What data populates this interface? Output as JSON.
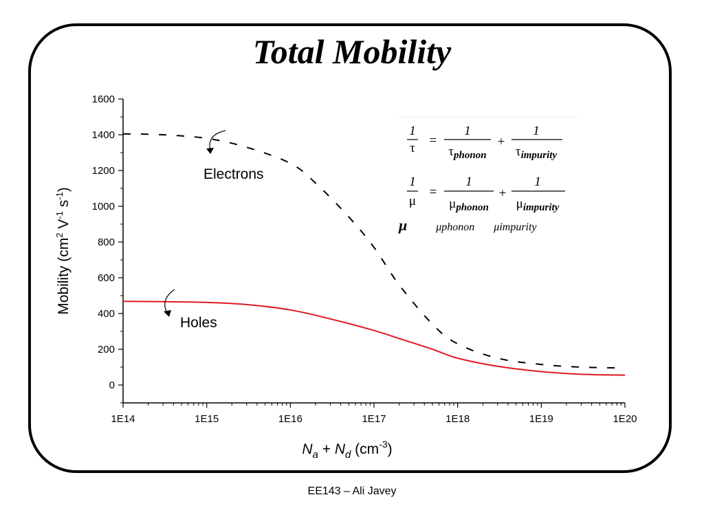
{
  "slide": {
    "title": "Total Mobility",
    "footer": "EE143 – Ali Javey"
  },
  "chart_data": {
    "type": "line",
    "title": "",
    "xlabel": {
      "base": "N",
      "sub_a": "a",
      "plus": " + ",
      "sub_d": "d",
      "unit_open": " (cm",
      "unit_exp": "-3",
      "unit_close": ")"
    },
    "ylabel": {
      "text1": "Mobility (cm",
      "exp1": "2",
      "text2": " V",
      "exp2": "-1",
      "text3": " s",
      "exp3": "-1",
      "text4": ")"
    },
    "x_scale": "log",
    "xlim": [
      100000000000000.0,
      1e+20
    ],
    "ylim": [
      -100,
      1600
    ],
    "x_ticks": [
      100000000000000.0,
      1000000000000000.0,
      1e+16,
      1e+17,
      1e+18,
      1e+19,
      1e+20
    ],
    "x_tick_labels": [
      "1E14",
      "1E15",
      "1E16",
      "1E17",
      "1E18",
      "1E19",
      "1E20"
    ],
    "y_ticks": [
      0,
      200,
      400,
      600,
      800,
      1000,
      1200,
      1400,
      1600
    ],
    "y_tick_labels": [
      "0",
      "200",
      "400",
      "600",
      "800",
      "1000",
      "1200",
      "1400",
      "1600"
    ],
    "grid": false,
    "series": [
      {
        "name": "Electrons",
        "style": "dashed",
        "color": "#000000",
        "x": [
          100000000000000.0,
          300000000000000.0,
          1000000000000000.0,
          3000000000000000.0,
          1e+16,
          2e+16,
          5e+16,
          1e+17,
          2e+17,
          5e+17,
          1e+18,
          3e+18,
          1e+19,
          3e+19,
          1e+20
        ],
        "y": [
          1405,
          1400,
          1380,
          1330,
          1240,
          1130,
          940,
          770,
          560,
          340,
          230,
          150,
          115,
          100,
          95
        ]
      },
      {
        "name": "Holes",
        "style": "solid",
        "color": "#e0191c",
        "x": [
          100000000000000.0,
          300000000000000.0,
          1000000000000000.0,
          3000000000000000.0,
          1e+16,
          3e+16,
          1e+17,
          2e+17,
          5e+17,
          1e+18,
          3e+18,
          1e+19,
          3e+19,
          1e+20
        ],
        "y": [
          468,
          466,
          462,
          450,
          420,
          370,
          305,
          260,
          200,
          150,
          105,
          75,
          60,
          55
        ]
      }
    ],
    "annotations": [
      {
        "label": "Electrons",
        "x": 1000000000000000.0
      },
      {
        "label": "Holes",
        "x": 500000000000000.0
      }
    ]
  },
  "equations": {
    "one": "1",
    "eq": "=",
    "plus": "+",
    "tau": "τ",
    "mu": "μ",
    "sub_phonon": "phonon",
    "sub_impurity": "impurity",
    "ghost_mu": "μ",
    "ghost_phonon": "μphonon",
    "ghost_impurity": "μimpurity"
  }
}
